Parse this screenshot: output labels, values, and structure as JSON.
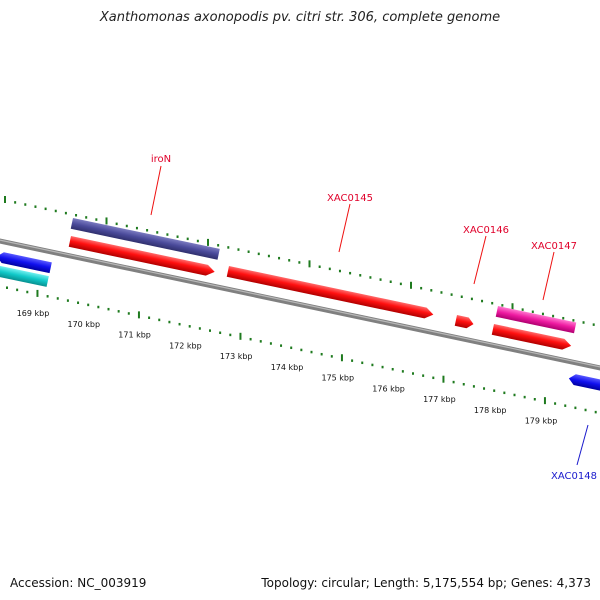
{
  "title": "Xanthomonas axonopodis pv. citri str. 306, complete genome",
  "footer": {
    "accession": "Accession: NC_003919",
    "summary": "Topology: circular; Length: 5,175,554 bp; Genes: 4,373"
  },
  "scale": {
    "labels": [
      "169 kbp",
      "170 kbp",
      "171 kbp",
      "172 kbp",
      "173 kbp",
      "174 kbp",
      "175 kbp",
      "176 kbp",
      "177 kbp",
      "178 kbp",
      "179 kbp"
    ]
  },
  "genes": [
    {
      "name": "iroN",
      "color": "#e0002a"
    },
    {
      "name": "XAC0145",
      "color": "#e0002a"
    },
    {
      "name": "XAC0146",
      "color": "#e0002a"
    },
    {
      "name": "XAC0147",
      "color": "#e0002a"
    },
    {
      "name": "XAC0148",
      "color": "#1a1acc"
    }
  ],
  "colors": {
    "backbone": "#808080",
    "ticks": "#1e7a1e",
    "forward_gene": "#ee1111",
    "reverse_gene": "#1010ee",
    "cyan_feature": "#10c8c8",
    "purple_feature": "#4a4a9a",
    "magenta_feature": "#ee1aa0"
  }
}
